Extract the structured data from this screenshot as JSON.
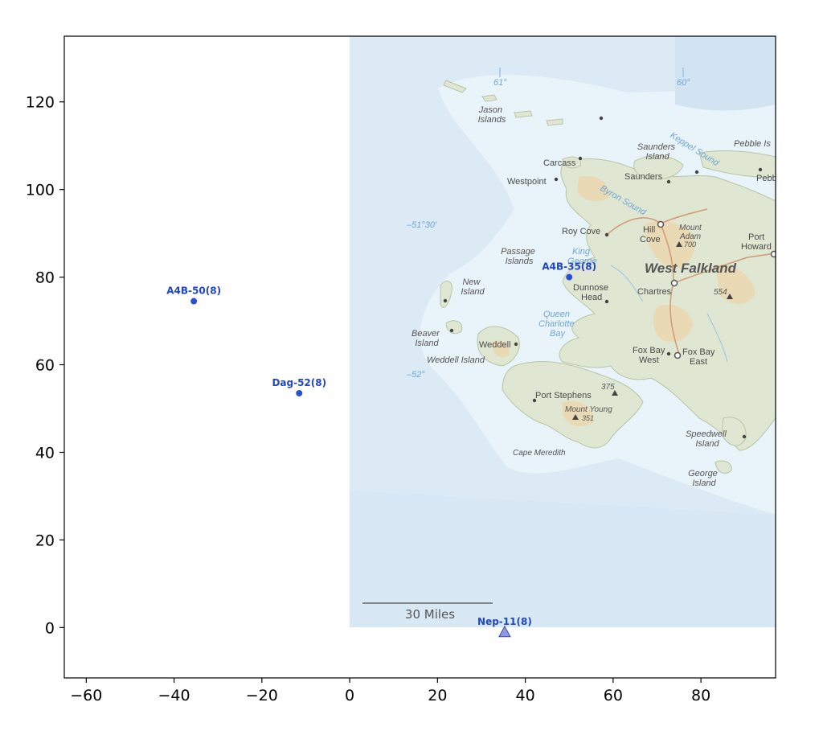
{
  "chart_data": {
    "type": "scatter",
    "xlim": [
      -65,
      97
    ],
    "ylim": [
      -11.5,
      135
    ],
    "x_ticks": [
      -60,
      -40,
      -20,
      0,
      20,
      40,
      60,
      80
    ],
    "y_ticks": [
      0,
      20,
      40,
      60,
      80,
      100,
      120
    ],
    "x_tick_labels": [
      "−60",
      "−40",
      "−20",
      "0",
      "20",
      "40",
      "60",
      "80"
    ],
    "y_tick_labels": [
      "0",
      "20",
      "40",
      "60",
      "80",
      "100",
      "120"
    ],
    "map_extent": {
      "x": [
        0,
        97
      ],
      "y": [
        0,
        135
      ]
    },
    "points": [
      {
        "label": "A4B-50(8)",
        "x": -35.5,
        "y": 74.5,
        "marker": "circle",
        "color": "#2a4fd6"
      },
      {
        "label": "Dag-52(8)",
        "x": -11.5,
        "y": 53.5,
        "marker": "circle",
        "color": "#2a4fd6"
      },
      {
        "label": "A4B-35(8)",
        "x": 50,
        "y": 80,
        "marker": "circle",
        "color": "#2a4fd6"
      },
      {
        "label": "Nep-11(8)",
        "x": 35.3,
        "y": -1,
        "marker": "triangle",
        "color": "#6a78d6"
      }
    ]
  },
  "map": {
    "title": "West Falkland",
    "scale_bar": "30 Miles",
    "islands": [
      {
        "name": "Jason Islands",
        "lines": [
          "Jason",
          "Islands"
        ]
      },
      {
        "name": "Passage Islands",
        "lines": [
          "Passage",
          "Islands"
        ]
      },
      {
        "name": "New Island",
        "lines": [
          "New",
          "Island"
        ]
      },
      {
        "name": "Beaver Island",
        "lines": [
          "Beaver",
          "Island"
        ]
      },
      {
        "name": "Weddell Island",
        "lines": [
          "Weddell Island"
        ]
      },
      {
        "name": "Saunders Island",
        "lines": [
          "Saunders",
          "Island"
        ]
      },
      {
        "name": "Pebble Island",
        "lines": [
          "Pebble Is"
        ]
      },
      {
        "name": "Speedwell Island",
        "lines": [
          "Speedwell",
          "Island"
        ]
      },
      {
        "name": "George Island",
        "lines": [
          "George",
          "Island"
        ]
      }
    ],
    "settlements": [
      "Carcass",
      "Westpoint",
      "Saunders",
      "Roy Cove",
      "Hill",
      "Cove",
      "Chartres",
      "Dunnose",
      "Head",
      "Weddell",
      "Fox Bay",
      "West",
      "Fox Bay",
      "East",
      "Port Stephens",
      "Port",
      "Howard",
      "Pebb"
    ],
    "features": [
      "Mount",
      "Adam",
      "700",
      "554",
      "375",
      "Mount Young",
      "351",
      "Cape Meredith"
    ],
    "waters": [
      "King",
      "George",
      "Bay",
      "Queen",
      "Charlotte",
      "Bay",
      "Byron Sound",
      "Keppel Sound"
    ],
    "graticule": [
      "61°",
      "60°",
      "51°30'",
      "52°"
    ]
  }
}
